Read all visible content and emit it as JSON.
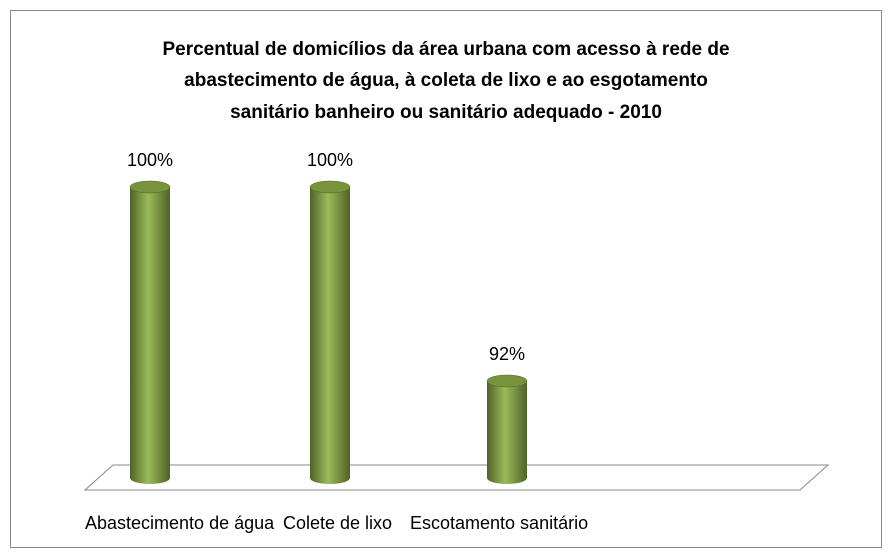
{
  "chart_data": {
    "type": "bar3d",
    "title": [
      "Percentual de domicílios da área urbana com acesso à rede de",
      "abastecimento de água, à coleta de lixo e ao esgotamento",
      "sanitário banheiro ou sanitário adequado - 2010"
    ],
    "categories": [
      "Abastecimento de água",
      "Colete de lixo",
      "Escotamento sanitário"
    ],
    "values": [
      100,
      100,
      92
    ],
    "value_labels": [
      "100%",
      "100%",
      "92%"
    ],
    "color": "#77933c",
    "ylim": [
      88,
      100
    ]
  }
}
